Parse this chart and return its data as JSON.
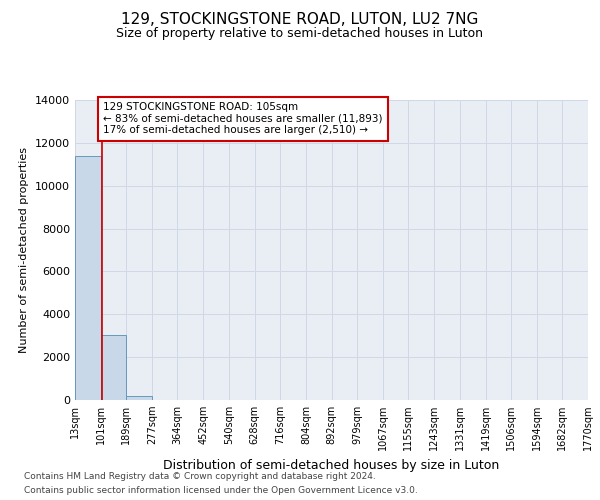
{
  "title_line1": "129, STOCKINGSTONE ROAD, LUTON, LU2 7NG",
  "title_line2": "Size of property relative to semi-detached houses in Luton",
  "xlabel": "Distribution of semi-detached houses by size in Luton",
  "ylabel": "Number of semi-detached properties",
  "footer_line1": "Contains HM Land Registry data © Crown copyright and database right 2024.",
  "footer_line2": "Contains public sector information licensed under the Open Government Licence v3.0.",
  "bin_edges": [
    13,
    101,
    189,
    277,
    364,
    452,
    540,
    628,
    716,
    804,
    892,
    979,
    1067,
    1155,
    1243,
    1331,
    1419,
    1506,
    1594,
    1682,
    1770
  ],
  "bin_labels": [
    "13sqm",
    "101sqm",
    "189sqm",
    "277sqm",
    "364sqm",
    "452sqm",
    "540sqm",
    "628sqm",
    "716sqm",
    "804sqm",
    "892sqm",
    "979sqm",
    "1067sqm",
    "1155sqm",
    "1243sqm",
    "1331sqm",
    "1419sqm",
    "1506sqm",
    "1594sqm",
    "1682sqm",
    "1770sqm"
  ],
  "counts": [
    11400,
    3050,
    200,
    0,
    0,
    0,
    0,
    0,
    0,
    0,
    0,
    0,
    0,
    0,
    0,
    0,
    0,
    0,
    0,
    0
  ],
  "bar_color": "#c8d8e8",
  "bar_edge_color": "#6699bb",
  "grid_color": "#d0d8e8",
  "background_color": "#e8eef4",
  "property_size": 105,
  "property_line_color": "#cc0000",
  "annotation_text_line1": "129 STOCKINGSTONE ROAD: 105sqm",
  "annotation_text_line2": "← 83% of semi-detached houses are smaller (11,893)",
  "annotation_text_line3": "17% of semi-detached houses are larger (2,510) →",
  "annotation_box_color": "#ffffff",
  "annotation_border_color": "#cc0000",
  "ylim": [
    0,
    14000
  ],
  "yticks": [
    0,
    2000,
    4000,
    6000,
    8000,
    10000,
    12000,
    14000
  ]
}
